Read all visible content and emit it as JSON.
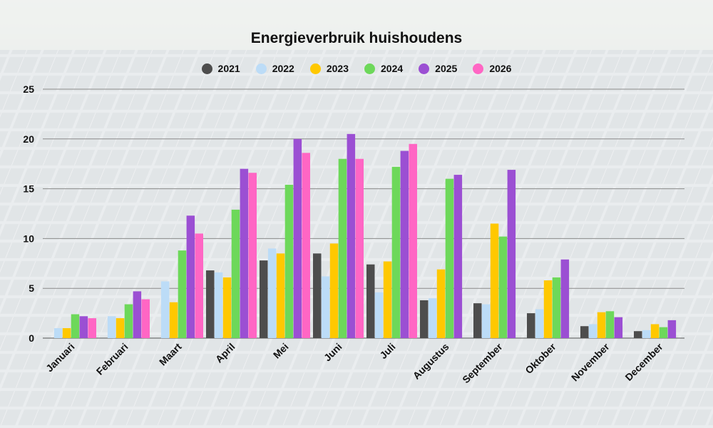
{
  "chart_data": {
    "type": "bar",
    "title": "Energieverbruik huishoudens",
    "xlabel": "",
    "ylabel": "",
    "ylim": [
      0,
      25
    ],
    "yticks": [
      0,
      5,
      10,
      15,
      20,
      25
    ],
    "grid": true,
    "legend_position": "top-center",
    "categories": [
      "Januari",
      "Februari",
      "Maart",
      "April",
      "Mei",
      "Juni",
      "Juli",
      "Augustus",
      "September",
      "Oktober",
      "November",
      "December"
    ],
    "series": [
      {
        "name": "2021",
        "color": "#4d4d4d",
        "values": [
          0,
          0,
          0,
          6.8,
          7.8,
          8.5,
          7.4,
          3.8,
          3.5,
          2.5,
          1.2,
          0.7
        ]
      },
      {
        "name": "2022",
        "color": "#bcdcf7",
        "values": [
          1.0,
          2.2,
          5.7,
          6.6,
          9.0,
          6.2,
          4.6,
          4.0,
          3.4,
          2.9,
          1.4,
          0.8
        ]
      },
      {
        "name": "2023",
        "color": "#ffc800",
        "values": [
          1.0,
          2.0,
          3.6,
          6.1,
          8.5,
          9.5,
          7.7,
          6.9,
          11.5,
          5.8,
          2.6,
          1.4
        ]
      },
      {
        "name": "2024",
        "color": "#6dd85a",
        "values": [
          2.4,
          3.4,
          8.8,
          12.9,
          15.4,
          18.0,
          17.2,
          16.0,
          10.2,
          6.1,
          2.7,
          1.1
        ]
      },
      {
        "name": "2025",
        "color": "#9b4fd3",
        "values": [
          2.2,
          4.7,
          12.3,
          17.0,
          20.0,
          20.5,
          18.8,
          16.4,
          16.9,
          7.9,
          2.1,
          1.8
        ]
      },
      {
        "name": "2026",
        "color": "#ff66c4",
        "values": [
          2.0,
          3.9,
          10.5,
          16.6,
          18.6,
          18.0,
          19.5,
          0,
          0,
          0,
          0,
          0
        ]
      }
    ]
  }
}
